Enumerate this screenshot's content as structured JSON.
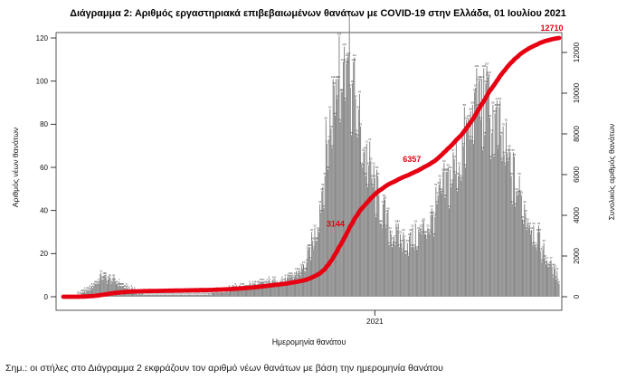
{
  "note": "Σημ.: οι στήλες στο Διάγραμμα 2 εκφράζουν τον αριθμό νέων θανάτων με βάση την ημερομηνία θανάτου",
  "chart_data": {
    "type": "combo",
    "title": "Διάγραμμα 2: Αριθμός εργαστηριακά επιβεβαιωμένων θανάτων με COVID-19 στην Ελλάδα, 01 Ιουλίου 2021",
    "xlabel": "Ημερομηνία θανάτου",
    "x_tick_labels": [
      "2021"
    ],
    "x_range": [
      "2020-03-01",
      "2021-07-01"
    ],
    "grid": false,
    "y_left": {
      "label": "Αριθμός νέων θανάτων",
      "ticks": [
        0,
        20,
        40,
        60,
        80,
        100,
        120
      ],
      "max_value_shown": 121
    },
    "y_right": {
      "label": "Συνολικός αριθμός θανάτων",
      "ticks": [
        0,
        2000,
        4000,
        6000,
        8000,
        10000,
        12000
      ],
      "max": 12710
    },
    "series": [
      {
        "name": "Αριθμός νέων θανάτων (ημερήσιες στήλες)",
        "type": "bar",
        "axis": "left",
        "color": "#868686",
        "label_color": "#3c3c3c",
        "anchors": [
          [
            "2020-03-01",
            0
          ],
          [
            "2020-03-15",
            0.5
          ],
          [
            "2020-03-26",
            3
          ],
          [
            "2020-04-08",
            9
          ],
          [
            "2020-04-20",
            7
          ],
          [
            "2020-05-05",
            3
          ],
          [
            "2020-05-20",
            1.2
          ],
          [
            "2020-06-16",
            0.8
          ],
          [
            "2020-07-16",
            1.2
          ],
          [
            "2020-08-10",
            3
          ],
          [
            "2020-09-01",
            5
          ],
          [
            "2020-09-21",
            6.5
          ],
          [
            "2020-10-11",
            8
          ],
          [
            "2020-10-25",
            14
          ],
          [
            "2020-11-05",
            32
          ],
          [
            "2020-11-15",
            68
          ],
          [
            "2020-11-25",
            103
          ],
          [
            "2020-12-03",
            112
          ],
          [
            "2020-12-11",
            93
          ],
          [
            "2020-12-20",
            70
          ],
          [
            "2020-12-29",
            54
          ],
          [
            "2021-01-05",
            44
          ],
          [
            "2021-01-15",
            31
          ],
          [
            "2021-01-25",
            26
          ],
          [
            "2021-02-05",
            25
          ],
          [
            "2021-02-15",
            29
          ],
          [
            "2021-02-25",
            34
          ],
          [
            "2021-03-05",
            44
          ],
          [
            "2021-03-15",
            54
          ],
          [
            "2021-03-25",
            64
          ],
          [
            "2021-04-05",
            77
          ],
          [
            "2021-04-15",
            88
          ],
          [
            "2021-04-25",
            84
          ],
          [
            "2021-05-05",
            71
          ],
          [
            "2021-05-15",
            57
          ],
          [
            "2021-05-25",
            44
          ],
          [
            "2021-06-05",
            32
          ],
          [
            "2021-06-15",
            21
          ],
          [
            "2021-06-25",
            12
          ],
          [
            "2021-07-01",
            8
          ]
        ],
        "peaks": [
          [
            "2020-11-27",
            121
          ],
          [
            "2020-12-02",
            116
          ],
          [
            "2020-12-04",
            108
          ],
          [
            "2021-04-09",
            95
          ],
          [
            "2021-04-13",
            100
          ],
          [
            "2021-04-20",
            99
          ]
        ]
      },
      {
        "name": "Συνολικός αριθμός θανάτων (αθροιστική καμπύλη)",
        "type": "line",
        "axis": "right",
        "color": "#e60012",
        "final_value": 12710,
        "annotations": [
          {
            "label": "3144",
            "value": 3144
          },
          {
            "label": "6357",
            "value": 6357
          },
          {
            "label": "12710",
            "value": 12710
          }
        ]
      }
    ]
  }
}
